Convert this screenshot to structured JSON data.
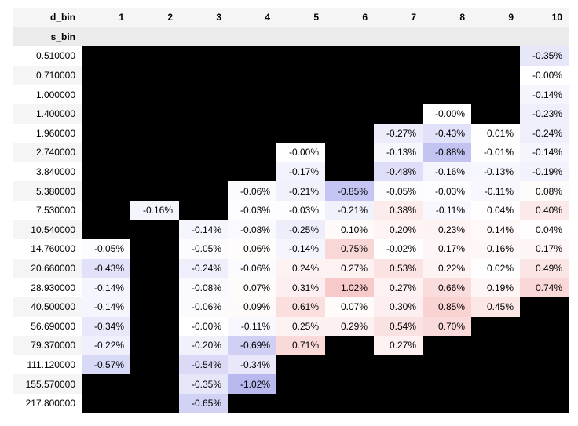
{
  "table": {
    "column_header_label": "d_bin",
    "row_header_label": "s_bin",
    "columns": [
      "1",
      "2",
      "3",
      "4",
      "5",
      "6",
      "7",
      "8",
      "9",
      "10"
    ],
    "rows": [
      {
        "label": "0.510000",
        "cells": [
          null,
          null,
          null,
          null,
          null,
          null,
          null,
          null,
          null,
          "-0.35%"
        ]
      },
      {
        "label": "0.710000",
        "cells": [
          null,
          null,
          null,
          null,
          null,
          null,
          null,
          null,
          null,
          "-0.00%"
        ]
      },
      {
        "label": "1.000000",
        "cells": [
          null,
          null,
          null,
          null,
          null,
          null,
          null,
          null,
          null,
          "-0.14%"
        ]
      },
      {
        "label": "1.400000",
        "cells": [
          null,
          null,
          null,
          null,
          null,
          null,
          null,
          "-0.00%",
          null,
          "-0.23%"
        ]
      },
      {
        "label": "1.960000",
        "cells": [
          null,
          null,
          null,
          null,
          null,
          null,
          "-0.27%",
          "-0.43%",
          "0.01%",
          "-0.24%"
        ]
      },
      {
        "label": "2.740000",
        "cells": [
          null,
          null,
          null,
          null,
          "-0.00%",
          null,
          "-0.13%",
          "-0.88%",
          "-0.01%",
          "-0.14%"
        ]
      },
      {
        "label": "3.840000",
        "cells": [
          null,
          null,
          null,
          null,
          "-0.17%",
          null,
          "-0.48%",
          "-0.16%",
          "-0.13%",
          "-0.19%"
        ]
      },
      {
        "label": "5.380000",
        "cells": [
          null,
          null,
          null,
          "-0.06%",
          "-0.21%",
          "-0.85%",
          "-0.05%",
          "-0.03%",
          "-0.11%",
          "0.08%"
        ]
      },
      {
        "label": "7.530000",
        "cells": [
          null,
          "-0.16%",
          null,
          "-0.03%",
          "-0.03%",
          "-0.21%",
          "0.38%",
          "-0.11%",
          "0.04%",
          "0.40%"
        ]
      },
      {
        "label": "10.540000",
        "cells": [
          null,
          null,
          "-0.14%",
          "-0.08%",
          "-0.25%",
          "0.10%",
          "0.20%",
          "0.23%",
          "0.14%",
          "0.04%"
        ]
      },
      {
        "label": "14.760000",
        "cells": [
          "-0.05%",
          null,
          "-0.05%",
          "0.06%",
          "-0.14%",
          "0.75%",
          "-0.02%",
          "0.17%",
          "0.16%",
          "0.17%"
        ]
      },
      {
        "label": "20.660000",
        "cells": [
          "-0.43%",
          null,
          "-0.24%",
          "-0.06%",
          "0.24%",
          "0.27%",
          "0.53%",
          "0.22%",
          "0.02%",
          "0.49%"
        ]
      },
      {
        "label": "28.930000",
        "cells": [
          "-0.14%",
          null,
          "-0.08%",
          "0.07%",
          "0.31%",
          "1.02%",
          "0.27%",
          "0.66%",
          "0.19%",
          "0.74%"
        ]
      },
      {
        "label": "40.500000",
        "cells": [
          "-0.14%",
          null,
          "-0.06%",
          "0.09%",
          "0.61%",
          "0.07%",
          "0.30%",
          "0.85%",
          "0.45%",
          null
        ]
      },
      {
        "label": "56.690000",
        "cells": [
          "-0.34%",
          null,
          "-0.00%",
          "-0.11%",
          "0.25%",
          "0.29%",
          "0.54%",
          "0.70%",
          null,
          null
        ]
      },
      {
        "label": "79.370000",
        "cells": [
          "-0.22%",
          null,
          "-0.20%",
          "-0.69%",
          "0.71%",
          null,
          "0.27%",
          null,
          null,
          null
        ]
      },
      {
        "label": "111.120000",
        "cells": [
          "-0.57%",
          null,
          "-0.54%",
          "-0.34%",
          null,
          null,
          null,
          null,
          null,
          null
        ]
      },
      {
        "label": "155.570000",
        "cells": [
          null,
          null,
          "-0.35%",
          "-1.02%",
          null,
          null,
          null,
          null,
          null,
          null
        ]
      },
      {
        "label": "217.800000",
        "cells": [
          null,
          null,
          "-0.65%",
          null,
          null,
          null,
          null,
          null,
          null,
          null
        ]
      }
    ]
  },
  "colors": {
    "missing": "#000000",
    "negative_max": "#b9b9f0",
    "neutral": "#ffffff",
    "positive_max": "#f8c9c9"
  }
}
